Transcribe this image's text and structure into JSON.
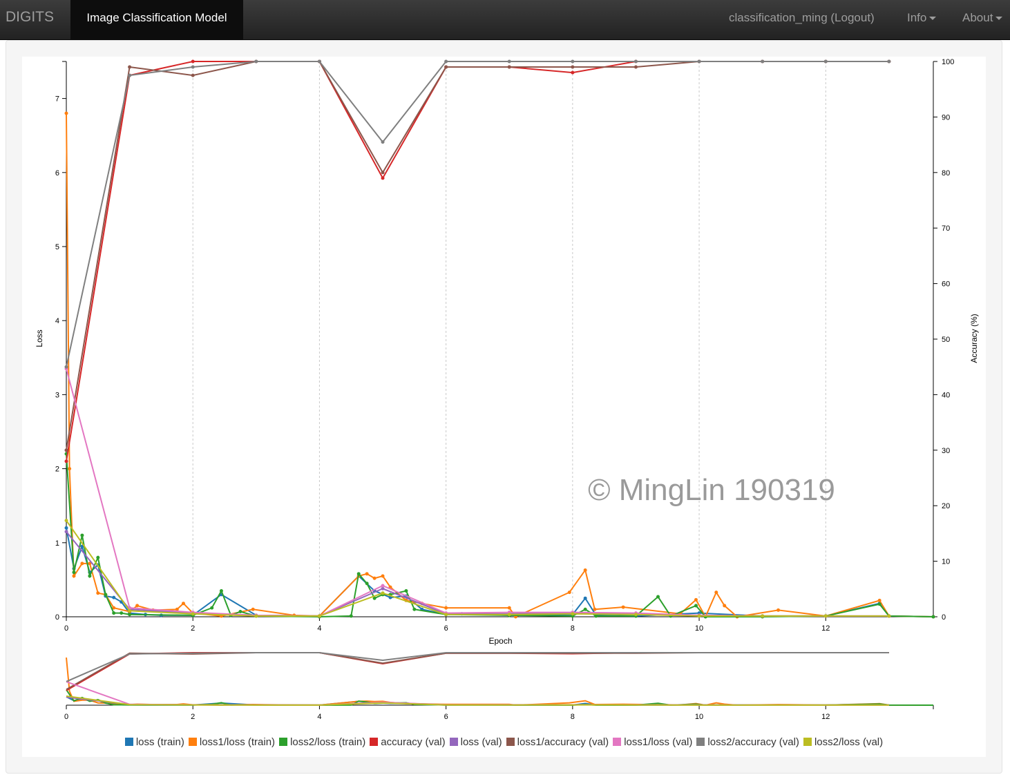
{
  "navbar": {
    "brand": "DIGITS",
    "active_tab": "Image Classification Model",
    "user": "classification_ming (Logout)",
    "info": "Info",
    "about": "About"
  },
  "watermark": "© MingLin 190319",
  "chart_data": {
    "type": "line",
    "xlabel": "Epoch",
    "ylabel_left": "Loss",
    "ylabel_right": "Accuracy (%)",
    "xlim": [
      0,
      13.7
    ],
    "ylim_left": [
      0,
      7.5
    ],
    "ylim_right": [
      0,
      100
    ],
    "x_ticks": [
      0,
      2,
      4,
      6,
      8,
      10,
      12
    ],
    "y_ticks_left": [
      0,
      1,
      2,
      3,
      4,
      5,
      6,
      7
    ],
    "y_ticks_right": [
      0,
      10,
      20,
      30,
      40,
      50,
      60,
      70,
      80,
      90,
      100
    ],
    "grid": "vertical dashed at even epochs",
    "legend_position": "bottom",
    "series": [
      {
        "name": "loss (train)",
        "axis": "left",
        "color": "#1f77b4",
        "x": [
          0,
          0.12,
          0.25,
          0.37,
          0.5,
          0.62,
          0.75,
          0.87,
          1.0,
          1.25,
          1.5,
          2.0,
          2.45,
          3.0,
          4.0,
          4.62,
          4.87,
          5.12,
          5.37,
          5.62,
          6.0,
          6.25,
          7.0,
          8.0,
          8.2,
          8.37,
          9.0,
          10.0,
          11.0,
          12.0,
          12.85,
          13.0,
          13.7
        ],
        "y": [
          1.2,
          0.65,
          0.95,
          0.6,
          0.7,
          0.28,
          0.26,
          0.2,
          0.05,
          0.03,
          0.02,
          0.02,
          0.3,
          0.02,
          0.01,
          0.55,
          0.35,
          0.26,
          0.28,
          0.1,
          0.03,
          0.04,
          0.02,
          0.03,
          0.25,
          0.02,
          0.01,
          0.05,
          0.01,
          0.01,
          0.18,
          0.01,
          0.0
        ]
      },
      {
        "name": "loss1/loss (train)",
        "axis": "left",
        "color": "#ff7f0e",
        "x": [
          0,
          0.05,
          0.12,
          0.25,
          0.37,
          0.5,
          0.62,
          0.75,
          1.0,
          1.12,
          1.37,
          1.75,
          1.85,
          2.0,
          2.45,
          2.95,
          3.6,
          4.0,
          4.62,
          4.75,
          4.87,
          5.0,
          5.12,
          5.37,
          5.62,
          6.0,
          7.0,
          7.1,
          7.95,
          8.2,
          8.35,
          8.8,
          9.7,
          9.95,
          10.1,
          10.27,
          10.4,
          10.6,
          11.25,
          12.0,
          12.85,
          13.0,
          13.7
        ],
        "y": [
          6.8,
          2.0,
          0.55,
          0.72,
          0.72,
          0.32,
          0.3,
          0.12,
          0.07,
          0.15,
          0.09,
          0.1,
          0.18,
          0.05,
          0.01,
          0.1,
          0.02,
          0.01,
          0.55,
          0.58,
          0.52,
          0.55,
          0.4,
          0.22,
          0.18,
          0.12,
          0.12,
          0.0,
          0.33,
          0.63,
          0.1,
          0.13,
          0.04,
          0.23,
          0.0,
          0.33,
          0.15,
          0.0,
          0.09,
          0.01,
          0.22,
          0.01,
          0.0
        ]
      },
      {
        "name": "loss2/loss (train)",
        "axis": "left",
        "color": "#2ca02c",
        "x": [
          0,
          0.12,
          0.25,
          0.37,
          0.5,
          0.62,
          0.75,
          0.87,
          1.0,
          2.0,
          2.3,
          2.45,
          2.6,
          2.75,
          3.0,
          4.0,
          4.5,
          4.62,
          4.75,
          4.87,
          5.0,
          5.12,
          5.37,
          5.5,
          6.0,
          7.0,
          8.0,
          8.2,
          8.37,
          9.0,
          9.35,
          9.55,
          9.95,
          10.1,
          11.0,
          12.0,
          12.85,
          13.0,
          13.7
        ],
        "y": [
          2.2,
          0.6,
          1.1,
          0.55,
          0.8,
          0.3,
          0.05,
          0.05,
          0.03,
          0.02,
          0.12,
          0.35,
          0.02,
          0.07,
          0.01,
          0.0,
          0.01,
          0.58,
          0.45,
          0.25,
          0.3,
          0.3,
          0.35,
          0.1,
          0.03,
          0.02,
          0.01,
          0.1,
          0.01,
          0.01,
          0.27,
          0.01,
          0.15,
          0.0,
          0.0,
          0.01,
          0.17,
          0.01,
          0.0
        ]
      },
      {
        "name": "accuracy (val)",
        "axis": "right",
        "color": "#d62728",
        "x": [
          0,
          1,
          2,
          3,
          4,
          5,
          6,
          7,
          8,
          9,
          10,
          11,
          12,
          13
        ],
        "y": [
          28,
          97.5,
          100,
          100,
          100,
          79,
          99,
          99,
          98,
          100,
          100,
          100,
          100,
          100
        ]
      },
      {
        "name": "loss (val)",
        "axis": "left",
        "color": "#9467bd",
        "x": [
          0,
          1,
          2,
          3,
          4,
          5,
          6,
          7,
          8,
          9,
          10,
          11,
          12,
          13
        ],
        "y": [
          1.15,
          0.1,
          0.05,
          0.02,
          0.01,
          0.38,
          0.04,
          0.04,
          0.05,
          0.04,
          0.02,
          0.01,
          0.01,
          0.01
        ]
      },
      {
        "name": "loss1/accuracy (val)",
        "axis": "right",
        "color": "#8c564b",
        "x": [
          0,
          1,
          2,
          3,
          4,
          5,
          6,
          7,
          8,
          9,
          10,
          11,
          12,
          13
        ],
        "y": [
          30,
          99,
          97.5,
          100,
          100,
          80,
          99,
          99,
          99,
          99,
          100,
          100,
          100,
          100
        ]
      },
      {
        "name": "loss1/loss (val)",
        "axis": "left",
        "color": "#e377c2",
        "x": [
          0,
          1,
          2,
          3,
          4,
          5,
          6,
          7,
          8,
          9,
          10,
          11,
          12,
          13
        ],
        "y": [
          3.35,
          0.12,
          0.06,
          0.02,
          0.01,
          0.42,
          0.05,
          0.06,
          0.06,
          0.05,
          0.02,
          0.01,
          0.01,
          0.01
        ]
      },
      {
        "name": "loss2/accuracy (val)",
        "axis": "right",
        "color": "#7f7f7f",
        "x": [
          0,
          1,
          2,
          3,
          4,
          5,
          6,
          7,
          8,
          9,
          10,
          11,
          12,
          13
        ],
        "y": [
          45,
          97.5,
          99,
          100,
          100,
          85.5,
          100,
          100,
          100,
          100,
          100,
          100,
          100,
          100
        ]
      },
      {
        "name": "loss2/loss (val)",
        "axis": "left",
        "color": "#bcbd22",
        "x": [
          0,
          1,
          2,
          3,
          4,
          5,
          6,
          7,
          8,
          9,
          10,
          11,
          12,
          13
        ],
        "y": [
          1.3,
          0.08,
          0.04,
          0.01,
          0.01,
          0.32,
          0.03,
          0.03,
          0.04,
          0.03,
          0.01,
          0.01,
          0.01,
          0.01
        ]
      }
    ]
  }
}
